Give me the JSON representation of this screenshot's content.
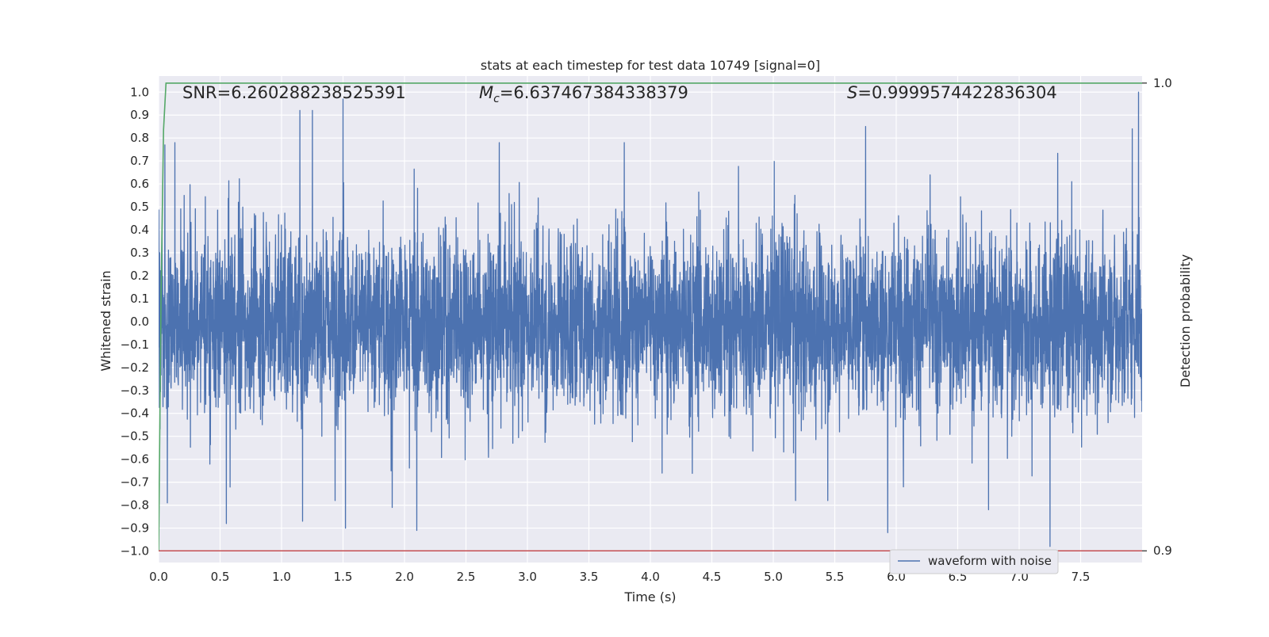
{
  "chart_data": {
    "type": "line",
    "title": "stats at each timestep for test data 10749 [signal=0]",
    "xlabel": "Time (s)",
    "ylabel": "Whitened strain",
    "y2label": "Detection probability",
    "xlim": [
      0.0,
      8.0
    ],
    "ylim": [
      -1.05,
      1.07
    ],
    "y2lim": [
      0.8975,
      1.0015
    ],
    "xticks": [
      0.0,
      0.5,
      1.0,
      1.5,
      2.0,
      2.5,
      3.0,
      3.5,
      4.0,
      4.5,
      5.0,
      5.5,
      6.0,
      6.5,
      7.0,
      7.5
    ],
    "xtick_labels": [
      "0.0",
      "0.5",
      "1.0",
      "1.5",
      "2.0",
      "2.5",
      "3.0",
      "3.5",
      "4.0",
      "4.5",
      "5.0",
      "5.5",
      "6.0",
      "6.5",
      "7.0",
      "7.5"
    ],
    "yticks": [
      -1.0,
      -0.9,
      -0.8,
      -0.7,
      -0.6,
      -0.5,
      -0.4,
      -0.3,
      -0.2,
      -0.1,
      0.0,
      0.1,
      0.2,
      0.3,
      0.4,
      0.5,
      0.6,
      0.7,
      0.8,
      0.9,
      1.0
    ],
    "ytick_labels": [
      "−1.0",
      "−0.9",
      "−0.8",
      "−0.7",
      "−0.6",
      "−0.5",
      "−0.4",
      "−0.3",
      "−0.2",
      "−0.1",
      "0.0",
      "0.1",
      "0.2",
      "0.3",
      "0.4",
      "0.5",
      "0.6",
      "0.7",
      "0.8",
      "0.9",
      "1.0"
    ],
    "y2ticks": [
      0.9,
      1.0
    ],
    "y2tick_labels": [
      "0.9",
      "1.0"
    ],
    "grid": true,
    "legend_placement": "lower-right",
    "series": [
      {
        "name": "waveform with noise",
        "color": "#4c72b0",
        "axis": "left",
        "style": "dense-noise",
        "x_range": [
          0.0,
          8.0
        ],
        "typical_amplitude": 0.3,
        "extreme_peaks": [
          {
            "x": 0.05,
            "y": 0.77
          },
          {
            "x": 0.07,
            "y": -0.79
          },
          {
            "x": 0.55,
            "y": -0.88
          },
          {
            "x": 1.15,
            "y": 0.92
          },
          {
            "x": 1.25,
            "y": 0.92
          },
          {
            "x": 1.17,
            "y": -0.87
          },
          {
            "x": 1.5,
            "y": 0.97
          },
          {
            "x": 1.52,
            "y": -0.9
          },
          {
            "x": 1.9,
            "y": -0.81
          },
          {
            "x": 2.1,
            "y": -0.91
          },
          {
            "x": 5.75,
            "y": 0.85
          },
          {
            "x": 5.93,
            "y": -0.92
          },
          {
            "x": 6.75,
            "y": -0.82
          },
          {
            "x": 7.25,
            "y": -0.98
          },
          {
            "x": 7.97,
            "y": 1.0
          },
          {
            "x": 7.92,
            "y": 0.84
          }
        ]
      },
      {
        "name": "",
        "color": "#55a868",
        "axis": "right",
        "x": [
          0.0,
          0.02,
          0.04,
          0.06,
          8.0
        ],
        "y": [
          0.9,
          0.955,
          0.99,
          1.0,
          1.0
        ]
      },
      {
        "name": "",
        "color": "#c44e52",
        "axis": "right",
        "x": [
          0.0,
          8.0
        ],
        "y": [
          0.9,
          0.9
        ]
      }
    ],
    "annotations": {
      "snr": "SNR=6.260288238525391",
      "mc_symbol": "M",
      "mc_sub": "c",
      "mc_value": "=6.637467384338379",
      "s_symbol": "S",
      "s_value": "=0.9999574422836304"
    },
    "colors": {
      "axes_bg": "#eaeaf2",
      "grid": "#ffffff",
      "text": "#262626"
    }
  }
}
